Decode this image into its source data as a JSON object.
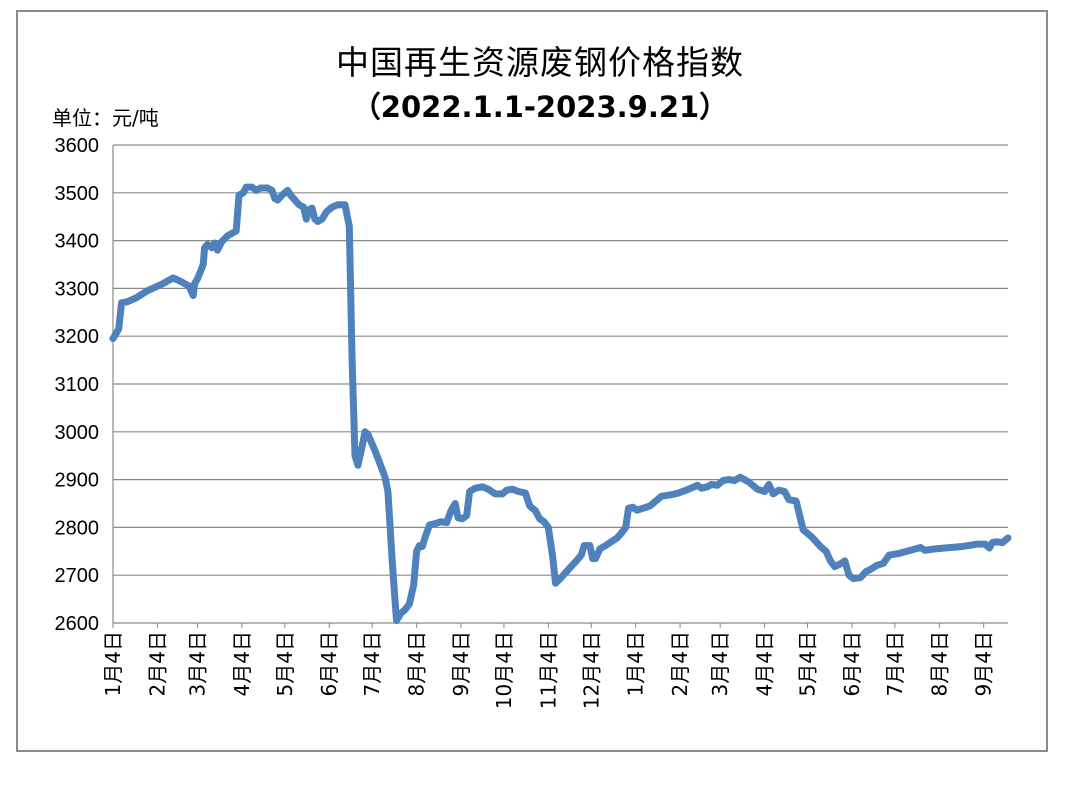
{
  "chart_data": {
    "type": "line",
    "title": "中国再生资源废钢价格指数",
    "subtitle": "（2022.1.1-2023.9.21）",
    "unit_label": "单位：元/吨",
    "ylim": [
      2600,
      3600
    ],
    "y_ticks": [
      2600,
      2700,
      2800,
      2900,
      3000,
      3100,
      3200,
      3300,
      3400,
      3500,
      3600
    ],
    "x_tick_labels": [
      "1月4日",
      "2月4日",
      "3月4日",
      "4月4日",
      "5月4日",
      "6月4日",
      "7月4日",
      "8月4日",
      "9月4日",
      "10月4日",
      "11月4日",
      "12月4日",
      "1月4日",
      "2月4日",
      "3月4日",
      "4月4日",
      "5月4日",
      "6月4日",
      "7月4日",
      "8月4日",
      "9月4日"
    ],
    "grid": true,
    "line_color": "#4f81bd",
    "series": [
      {
        "points": [
          [
            "2022-01-04",
            3195
          ],
          [
            "2022-01-06",
            3205
          ],
          [
            "2022-01-08",
            3215
          ],
          [
            "2022-01-10",
            3270
          ],
          [
            "2022-01-14",
            3272
          ],
          [
            "2022-01-20",
            3280
          ],
          [
            "2022-01-28",
            3295
          ],
          [
            "2022-02-08",
            3310
          ],
          [
            "2022-02-15",
            3322
          ],
          [
            "2022-02-20",
            3315
          ],
          [
            "2022-02-26",
            3305
          ],
          [
            "2022-03-01",
            3285
          ],
          [
            "2022-03-02",
            3310
          ],
          [
            "2022-03-04",
            3320
          ],
          [
            "2022-03-06",
            3335
          ],
          [
            "2022-03-08",
            3350
          ],
          [
            "2022-03-09",
            3385
          ],
          [
            "2022-03-11",
            3392
          ],
          [
            "2022-03-14",
            3385
          ],
          [
            "2022-03-16",
            3395
          ],
          [
            "2022-03-18",
            3380
          ],
          [
            "2022-03-21",
            3398
          ],
          [
            "2022-03-25",
            3410
          ],
          [
            "2022-03-31",
            3420
          ],
          [
            "2022-04-02",
            3495
          ],
          [
            "2022-04-05",
            3500
          ],
          [
            "2022-04-07",
            3512
          ],
          [
            "2022-04-11",
            3512
          ],
          [
            "2022-04-14",
            3505
          ],
          [
            "2022-04-17",
            3510
          ],
          [
            "2022-04-22",
            3510
          ],
          [
            "2022-04-25",
            3505
          ],
          [
            "2022-04-27",
            3488
          ],
          [
            "2022-04-29",
            3485
          ],
          [
            "2022-05-02",
            3495
          ],
          [
            "2022-05-06",
            3505
          ],
          [
            "2022-05-08",
            3495
          ],
          [
            "2022-05-11",
            3485
          ],
          [
            "2022-05-14",
            3475
          ],
          [
            "2022-05-17",
            3470
          ],
          [
            "2022-05-19",
            3445
          ],
          [
            "2022-05-21",
            3465
          ],
          [
            "2022-05-23",
            3468
          ],
          [
            "2022-05-25",
            3445
          ],
          [
            "2022-05-27",
            3440
          ],
          [
            "2022-05-30",
            3445
          ],
          [
            "2022-06-02",
            3460
          ],
          [
            "2022-06-06",
            3470
          ],
          [
            "2022-06-10",
            3475
          ],
          [
            "2022-06-15",
            3475
          ],
          [
            "2022-06-18",
            3430
          ],
          [
            "2022-06-20",
            3150
          ],
          [
            "2022-06-22",
            2950
          ],
          [
            "2022-06-24",
            2930
          ],
          [
            "2022-06-27",
            2970
          ],
          [
            "2022-06-29",
            3000
          ],
          [
            "2022-07-01",
            2995
          ],
          [
            "2022-07-06",
            2960
          ],
          [
            "2022-07-13",
            2905
          ],
          [
            "2022-07-15",
            2875
          ],
          [
            "2022-07-18",
            2730
          ],
          [
            "2022-07-21",
            2605
          ],
          [
            "2022-07-24",
            2620
          ],
          [
            "2022-07-27",
            2628
          ],
          [
            "2022-07-30",
            2640
          ],
          [
            "2022-08-02",
            2680
          ],
          [
            "2022-08-04",
            2750
          ],
          [
            "2022-08-06",
            2762
          ],
          [
            "2022-08-08",
            2760
          ],
          [
            "2022-08-10",
            2780
          ],
          [
            "2022-08-13",
            2805
          ],
          [
            "2022-08-17",
            2808
          ],
          [
            "2022-08-21",
            2812
          ],
          [
            "2022-08-25",
            2810
          ],
          [
            "2022-08-28",
            2835
          ],
          [
            "2022-08-31",
            2850
          ],
          [
            "2022-09-02",
            2820
          ],
          [
            "2022-09-05",
            2818
          ],
          [
            "2022-09-08",
            2825
          ],
          [
            "2022-09-10",
            2875
          ],
          [
            "2022-09-14",
            2882
          ],
          [
            "2022-09-19",
            2885
          ],
          [
            "2022-09-23",
            2880
          ],
          [
            "2022-09-28",
            2870
          ],
          [
            "2022-10-03",
            2870
          ],
          [
            "2022-10-06",
            2878
          ],
          [
            "2022-10-10",
            2880
          ],
          [
            "2022-10-14",
            2875
          ],
          [
            "2022-10-19",
            2872
          ],
          [
            "2022-10-22",
            2845
          ],
          [
            "2022-10-26",
            2835
          ],
          [
            "2022-10-29",
            2818
          ],
          [
            "2022-11-01",
            2812
          ],
          [
            "2022-11-04",
            2800
          ],
          [
            "2022-11-07",
            2740
          ],
          [
            "2022-11-09",
            2683
          ],
          [
            "2022-11-13",
            2695
          ],
          [
            "2022-11-18",
            2712
          ],
          [
            "2022-11-23",
            2728
          ],
          [
            "2022-11-27",
            2742
          ],
          [
            "2022-11-29",
            2762
          ],
          [
            "2022-12-03",
            2762
          ],
          [
            "2022-12-05",
            2735
          ],
          [
            "2022-12-07",
            2735
          ],
          [
            "2022-12-10",
            2755
          ],
          [
            "2022-12-14",
            2762
          ],
          [
            "2022-12-18",
            2770
          ],
          [
            "2022-12-22",
            2778
          ],
          [
            "2022-12-25",
            2788
          ],
          [
            "2022-12-28",
            2800
          ],
          [
            "2022-12-30",
            2840
          ],
          [
            "2023-01-02",
            2842
          ],
          [
            "2023-01-05",
            2836
          ],
          [
            "2023-01-09",
            2840
          ],
          [
            "2023-01-14",
            2845
          ],
          [
            "2023-01-18",
            2855
          ],
          [
            "2023-01-22",
            2865
          ],
          [
            "2023-01-28",
            2868
          ],
          [
            "2023-02-03",
            2872
          ],
          [
            "2023-02-10",
            2880
          ],
          [
            "2023-02-16",
            2888
          ],
          [
            "2023-02-19",
            2882
          ],
          [
            "2023-02-23",
            2885
          ],
          [
            "2023-02-26",
            2890
          ],
          [
            "2023-03-02",
            2888
          ],
          [
            "2023-03-06",
            2898
          ],
          [
            "2023-03-10",
            2900
          ],
          [
            "2023-03-14",
            2898
          ],
          [
            "2023-03-18",
            2905
          ],
          [
            "2023-03-24",
            2895
          ],
          [
            "2023-03-30",
            2880
          ],
          [
            "2023-04-04",
            2875
          ],
          [
            "2023-04-07",
            2890
          ],
          [
            "2023-04-10",
            2870
          ],
          [
            "2023-04-14",
            2878
          ],
          [
            "2023-04-18",
            2875
          ],
          [
            "2023-04-21",
            2858
          ],
          [
            "2023-04-26",
            2855
          ],
          [
            "2023-05-01",
            2795
          ],
          [
            "2023-05-07",
            2780
          ],
          [
            "2023-05-13",
            2760
          ],
          [
            "2023-05-17",
            2750
          ],
          [
            "2023-05-20",
            2730
          ],
          [
            "2023-05-23",
            2718
          ],
          [
            "2023-05-26",
            2722
          ],
          [
            "2023-05-30",
            2730
          ],
          [
            "2023-06-02",
            2700
          ],
          [
            "2023-06-05",
            2693
          ],
          [
            "2023-06-10",
            2695
          ],
          [
            "2023-06-14",
            2708
          ],
          [
            "2023-06-17",
            2712
          ],
          [
            "2023-06-21",
            2720
          ],
          [
            "2023-06-26",
            2725
          ],
          [
            "2023-06-30",
            2742
          ],
          [
            "2023-07-06",
            2745
          ],
          [
            "2023-07-15",
            2752
          ],
          [
            "2023-07-22",
            2758
          ],
          [
            "2023-07-25",
            2752
          ],
          [
            "2023-08-01",
            2755
          ],
          [
            "2023-08-20",
            2760
          ],
          [
            "2023-08-31",
            2765
          ],
          [
            "2023-09-05",
            2765
          ],
          [
            "2023-09-08",
            2757
          ],
          [
            "2023-09-10",
            2768
          ],
          [
            "2023-09-13",
            2770
          ],
          [
            "2023-09-17",
            2768
          ],
          [
            "2023-09-21",
            2778
          ]
        ]
      }
    ]
  }
}
